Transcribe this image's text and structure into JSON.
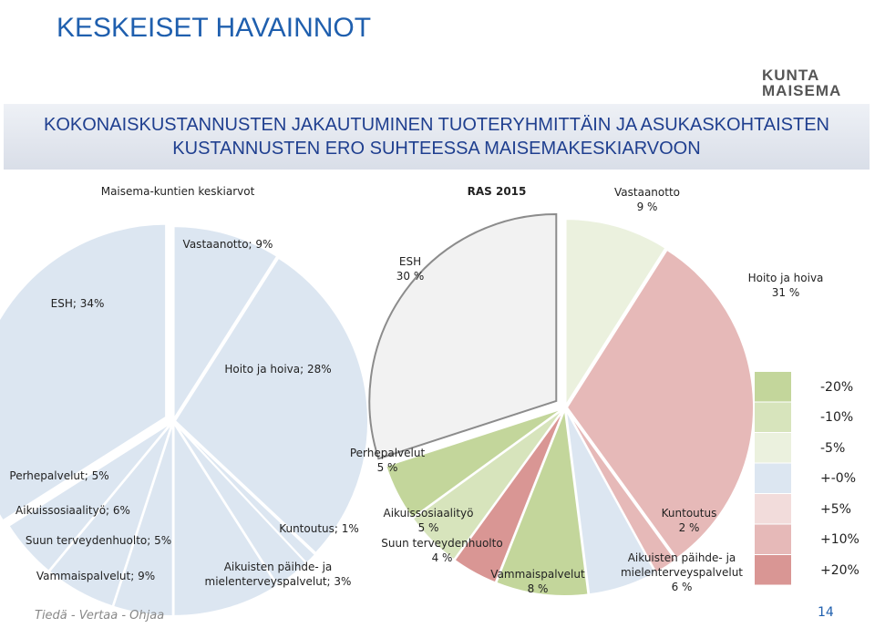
{
  "title": "KESKEISET HAVAINNOT",
  "subtitle": [
    "KOKONAISKUSTANNUSTEN JAKAUTUMINEN TUOTERYHMITTÄIN JA ASUKASKOHTAISTEN",
    "KUSTANNUSTEN ERO SUHTEESSA MAISEMAKESKIARVOON"
  ],
  "logo": [
    "KUNTA",
    "MAISEMA"
  ],
  "chart_data": [
    {
      "type": "pie",
      "title": "Maisema-kuntien keskiarvot",
      "labels": [
        "Vastaanotto; 9%",
        "Hoito ja hoiva; 28%",
        "Kuntoutus; 1%",
        "Aikuisten päihde- ja mielenterveyspalvelut; 3%",
        "Vammaispalvelut; 9%",
        "Suun terveydenhuolto; 5%",
        "Aikuissosiaalityö; 6%",
        "Perhepalvelut; 5%",
        "ESH; 34%"
      ],
      "values": [
        9,
        28,
        1,
        3,
        9,
        5,
        6,
        5,
        34
      ],
      "colors": [
        "#dce6f1",
        "#dce6f1",
        "#dce6f1",
        "#dce6f1",
        "#dce6f1",
        "#dce6f1",
        "#dce6f1",
        "#dce6f1",
        "#dce6f1"
      ]
    },
    {
      "type": "pie",
      "title": "RAS 2015",
      "categories": [
        "Vastaanotto",
        "Hoito ja hoiva",
        "Kuntoutus",
        "Aikuisten päihde- ja mielenterveyspalvelut",
        "Vammaispalvelut",
        "Suun terveydenhuolto",
        "Aikuissosiaalityö",
        "Perhepalvelut",
        "ESH"
      ],
      "values": [
        9,
        31,
        2,
        6,
        8,
        4,
        5,
        5,
        30
      ],
      "value_labels": [
        "9 %",
        "31 %",
        "2 %",
        "6 %",
        "8 %",
        "4 %",
        "5 %",
        "5 %",
        "30 %"
      ],
      "colors": [
        "#ebf1de",
        "#e6b9b8",
        "#e6b9b8",
        "#dce6f1",
        "#c3d69b",
        "#d99694",
        "#d7e4bc",
        "#c3d69b",
        "#f2f2f2"
      ]
    }
  ],
  "legend": {
    "labels": [
      "-20%",
      "-10%",
      "-5%",
      "+-0%",
      "+5%",
      "+10%",
      "+20%"
    ],
    "colors": [
      "#c3d69b",
      "#d7e4bc",
      "#ebf1de",
      "#dce6f1",
      "#f2dcdb",
      "#e6b9b8",
      "#d99694"
    ]
  },
  "footer": "Tiedä - Vertaa - Ohjaa",
  "page_number": 14
}
